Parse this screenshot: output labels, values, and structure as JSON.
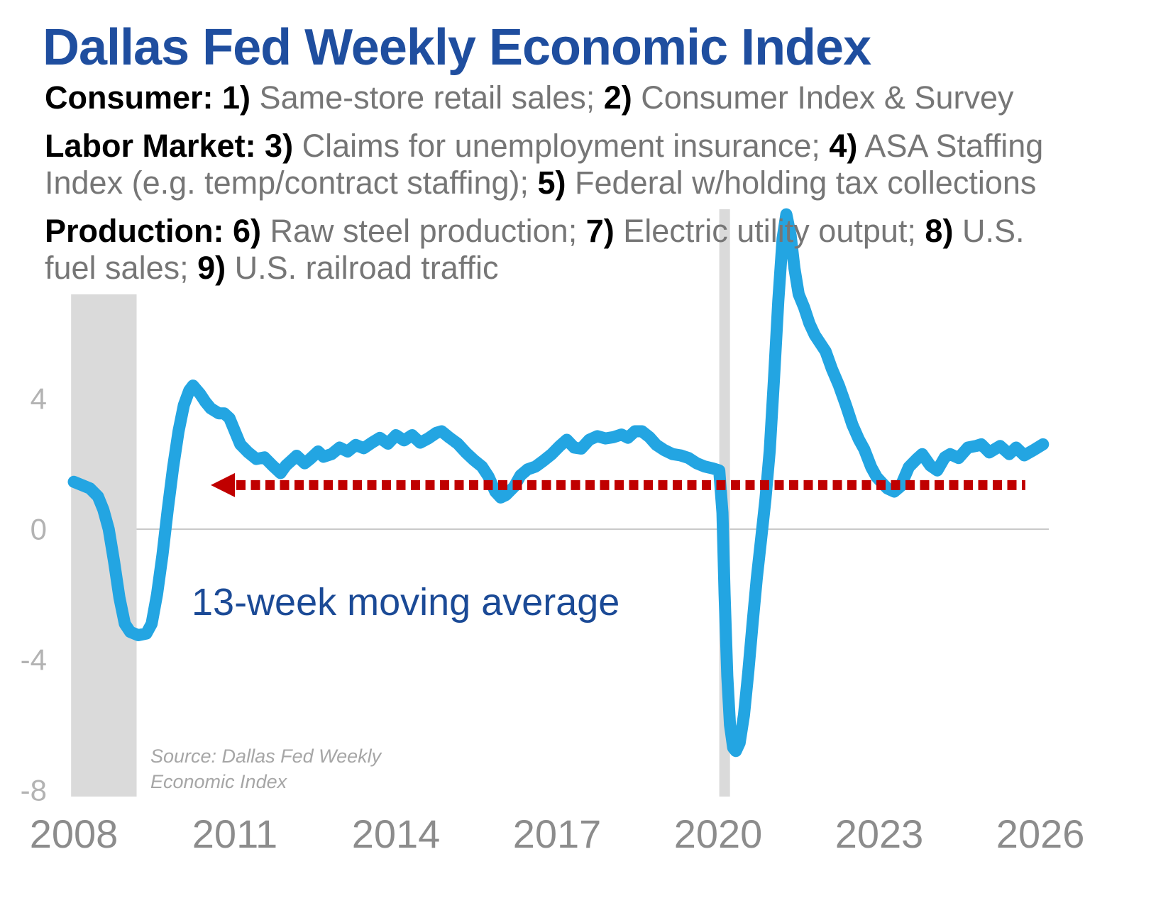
{
  "title": "Dallas Fed Weekly Economic Index",
  "colors": {
    "title_text": "#1F4E9F",
    "annotation_text": "#1B4A96",
    "line": "#23A5E2",
    "reference": "#C00000",
    "recession_band": "#DADADA",
    "zero_line": "#C9C9C9"
  },
  "description": {
    "lines": [
      {
        "gap": true,
        "segments": [
          {
            "t": "Consumer: 1)",
            "b": true
          },
          {
            "t": " Same-store retail sales; ",
            "b": false
          },
          {
            "t": "2)",
            "b": true
          },
          {
            "t": " Consumer Index & Survey",
            "b": false
          }
        ]
      },
      {
        "gap": false,
        "segments": [
          {
            "t": "Labor Market: 3)",
            "b": true
          },
          {
            "t": " Claims for unemployment insurance; ",
            "b": false
          },
          {
            "t": "4)",
            "b": true
          },
          {
            "t": " ASA Staffing",
            "b": false
          }
        ]
      },
      {
        "gap": true,
        "segments": [
          {
            "t": "Index (e.g. temp/contract staffing); ",
            "b": false
          },
          {
            "t": "5)",
            "b": true
          },
          {
            "t": " Federal w/holding tax collections",
            "b": false
          }
        ]
      },
      {
        "gap": false,
        "segments": [
          {
            "t": "Production: 6)",
            "b": true
          },
          {
            "t": " Raw steel production; ",
            "b": false
          },
          {
            "t": "7)",
            "b": true
          },
          {
            "t": " Electric utility output; ",
            "b": false
          },
          {
            "t": "8)",
            "b": true
          },
          {
            "t": " U.S.",
            "b": false
          }
        ]
      },
      {
        "gap": false,
        "segments": [
          {
            "t": "fuel sales; ",
            "b": false
          },
          {
            "t": "9)",
            "b": true
          },
          {
            "t": " U.S. railroad traffic",
            "b": false
          }
        ]
      }
    ]
  },
  "chart_data": {
    "type": "line",
    "title": "Dallas Fed Weekly Economic Index",
    "annotation": "13-week moving average",
    "source_note": [
      "Source: Dallas Fed Weekly",
      "Economic Index"
    ],
    "xlabel": "",
    "ylabel": "",
    "xlim": [
      2007.95,
      2026.2
    ],
    "ylim": [
      -8.2,
      10.2
    ],
    "grid": "zero-line-only",
    "x_ticks": [
      "2008",
      "2011",
      "2014",
      "2017",
      "2020",
      "2023",
      "2026"
    ],
    "x_tick_years": [
      2008,
      2011,
      2014,
      2017,
      2020,
      2023,
      2026
    ],
    "y_ticks": [
      4,
      0,
      -4,
      -8
    ],
    "recession_bands": [
      [
        2007.95,
        2009.17
      ],
      [
        2020.02,
        2020.22
      ]
    ],
    "reference_line": {
      "label": "latest value reference (dotted arrow pointing left)",
      "value": 1.35,
      "from_year": 2010.55,
      "to_year": 2025.72,
      "style": "square-dotted, left arrowhead"
    },
    "series": [
      {
        "name": "WEI 13-week moving average",
        "points": [
          [
            2008.0,
            1.45
          ],
          [
            2008.15,
            1.35
          ],
          [
            2008.3,
            1.25
          ],
          [
            2008.45,
            1.0
          ],
          [
            2008.55,
            0.6
          ],
          [
            2008.65,
            0.0
          ],
          [
            2008.75,
            -1.0
          ],
          [
            2008.85,
            -2.1
          ],
          [
            2008.95,
            -2.9
          ],
          [
            2009.05,
            -3.15
          ],
          [
            2009.2,
            -3.25
          ],
          [
            2009.35,
            -3.2
          ],
          [
            2009.45,
            -2.9
          ],
          [
            2009.55,
            -2.0
          ],
          [
            2009.65,
            -0.8
          ],
          [
            2009.75,
            0.6
          ],
          [
            2009.85,
            1.9
          ],
          [
            2009.95,
            3.0
          ],
          [
            2010.05,
            3.8
          ],
          [
            2010.15,
            4.25
          ],
          [
            2010.22,
            4.4
          ],
          [
            2010.35,
            4.15
          ],
          [
            2010.45,
            3.9
          ],
          [
            2010.55,
            3.7
          ],
          [
            2010.7,
            3.55
          ],
          [
            2010.8,
            3.55
          ],
          [
            2010.9,
            3.4
          ],
          [
            2011.0,
            3.0
          ],
          [
            2011.1,
            2.6
          ],
          [
            2011.25,
            2.35
          ],
          [
            2011.4,
            2.15
          ],
          [
            2011.55,
            2.2
          ],
          [
            2011.7,
            1.95
          ],
          [
            2011.85,
            1.72
          ],
          [
            2011.95,
            1.95
          ],
          [
            2012.05,
            2.1
          ],
          [
            2012.15,
            2.25
          ],
          [
            2012.3,
            2.02
          ],
          [
            2012.4,
            2.15
          ],
          [
            2012.55,
            2.38
          ],
          [
            2012.65,
            2.22
          ],
          [
            2012.8,
            2.3
          ],
          [
            2012.95,
            2.5
          ],
          [
            2013.1,
            2.38
          ],
          [
            2013.25,
            2.58
          ],
          [
            2013.4,
            2.48
          ],
          [
            2013.55,
            2.65
          ],
          [
            2013.7,
            2.8
          ],
          [
            2013.85,
            2.62
          ],
          [
            2014.0,
            2.88
          ],
          [
            2014.15,
            2.72
          ],
          [
            2014.3,
            2.88
          ],
          [
            2014.45,
            2.65
          ],
          [
            2014.6,
            2.78
          ],
          [
            2014.75,
            2.95
          ],
          [
            2014.85,
            3.0
          ],
          [
            2015.0,
            2.8
          ],
          [
            2015.15,
            2.62
          ],
          [
            2015.3,
            2.35
          ],
          [
            2015.45,
            2.12
          ],
          [
            2015.6,
            1.92
          ],
          [
            2015.72,
            1.62
          ],
          [
            2015.85,
            1.15
          ],
          [
            2015.95,
            0.97
          ],
          [
            2016.05,
            1.05
          ],
          [
            2016.2,
            1.3
          ],
          [
            2016.32,
            1.65
          ],
          [
            2016.45,
            1.83
          ],
          [
            2016.6,
            1.92
          ],
          [
            2016.75,
            2.1
          ],
          [
            2016.9,
            2.3
          ],
          [
            2017.05,
            2.55
          ],
          [
            2017.18,
            2.74
          ],
          [
            2017.32,
            2.5
          ],
          [
            2017.45,
            2.47
          ],
          [
            2017.6,
            2.74
          ],
          [
            2017.75,
            2.85
          ],
          [
            2017.9,
            2.78
          ],
          [
            2018.05,
            2.82
          ],
          [
            2018.2,
            2.9
          ],
          [
            2018.32,
            2.8
          ],
          [
            2018.45,
            3.0
          ],
          [
            2018.58,
            3.0
          ],
          [
            2018.72,
            2.82
          ],
          [
            2018.85,
            2.58
          ],
          [
            2019.0,
            2.42
          ],
          [
            2019.15,
            2.3
          ],
          [
            2019.3,
            2.26
          ],
          [
            2019.45,
            2.18
          ],
          [
            2019.6,
            2.02
          ],
          [
            2019.75,
            1.92
          ],
          [
            2019.9,
            1.86
          ],
          [
            2020.02,
            1.8
          ],
          [
            2020.08,
            0.5
          ],
          [
            2020.12,
            -2.0
          ],
          [
            2020.17,
            -4.5
          ],
          [
            2020.22,
            -6.0
          ],
          [
            2020.28,
            -6.7
          ],
          [
            2020.33,
            -6.8
          ],
          [
            2020.4,
            -6.55
          ],
          [
            2020.48,
            -5.7
          ],
          [
            2020.56,
            -4.4
          ],
          [
            2020.64,
            -2.9
          ],
          [
            2020.72,
            -1.5
          ],
          [
            2020.8,
            -0.3
          ],
          [
            2020.88,
            0.9
          ],
          [
            2020.96,
            2.4
          ],
          [
            2021.04,
            4.6
          ],
          [
            2021.12,
            7.0
          ],
          [
            2021.2,
            8.9
          ],
          [
            2021.27,
            9.65
          ],
          [
            2021.35,
            9.0
          ],
          [
            2021.42,
            8.0
          ],
          [
            2021.5,
            7.2
          ],
          [
            2021.6,
            6.8
          ],
          [
            2021.7,
            6.3
          ],
          [
            2021.8,
            5.95
          ],
          [
            2021.9,
            5.7
          ],
          [
            2022.0,
            5.45
          ],
          [
            2022.12,
            4.9
          ],
          [
            2022.25,
            4.4
          ],
          [
            2022.38,
            3.8
          ],
          [
            2022.5,
            3.2
          ],
          [
            2022.62,
            2.75
          ],
          [
            2022.72,
            2.45
          ],
          [
            2022.85,
            1.9
          ],
          [
            2022.95,
            1.6
          ],
          [
            2023.05,
            1.42
          ],
          [
            2023.15,
            1.25
          ],
          [
            2023.28,
            1.15
          ],
          [
            2023.4,
            1.32
          ],
          [
            2023.55,
            1.9
          ],
          [
            2023.7,
            2.15
          ],
          [
            2023.8,
            2.3
          ],
          [
            2023.95,
            1.95
          ],
          [
            2024.08,
            1.8
          ],
          [
            2024.22,
            2.2
          ],
          [
            2024.32,
            2.3
          ],
          [
            2024.48,
            2.18
          ],
          [
            2024.65,
            2.5
          ],
          [
            2024.8,
            2.55
          ],
          [
            2024.9,
            2.6
          ],
          [
            2025.05,
            2.35
          ],
          [
            2025.25,
            2.55
          ],
          [
            2025.42,
            2.3
          ],
          [
            2025.55,
            2.5
          ],
          [
            2025.7,
            2.26
          ],
          [
            2025.87,
            2.42
          ],
          [
            2026.05,
            2.6
          ]
        ]
      }
    ]
  }
}
